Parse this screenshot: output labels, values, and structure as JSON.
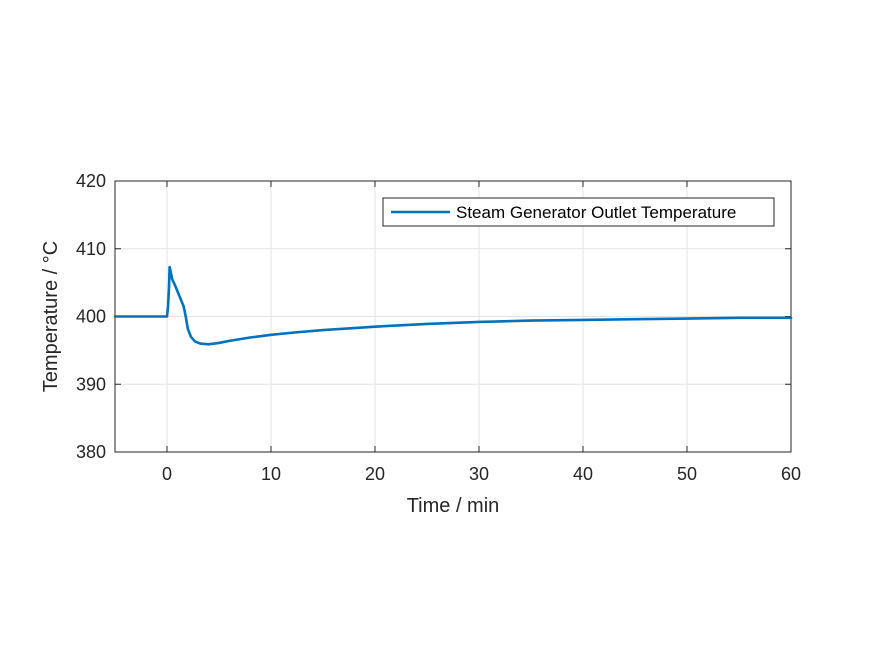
{
  "chart_data": {
    "type": "line",
    "title": "",
    "xlabel": "Time / min",
    "ylabel": "Temperature / °C",
    "xlim": [
      -5,
      60
    ],
    "ylim": [
      380,
      420
    ],
    "xticks": [
      0,
      10,
      20,
      30,
      40,
      50,
      60
    ],
    "yticks": [
      380,
      390,
      400,
      410,
      420
    ],
    "grid": true,
    "legend_position": "top-right",
    "series": [
      {
        "name": "Steam Generator Outlet Temperature",
        "color": "#0072BD",
        "x": [
          -5,
          -2,
          0,
          0.1,
          0.2,
          0.25,
          0.3,
          0.5,
          0.8,
          1.2,
          1.6,
          1.8,
          2.0,
          2.3,
          2.7,
          3.2,
          4.0,
          5,
          6,
          8,
          10,
          12,
          15,
          18,
          20,
          25,
          30,
          35,
          40,
          45,
          50,
          55,
          60
        ],
        "y": [
          400,
          400,
          400,
          401.5,
          404.5,
          407.3,
          407.0,
          405.5,
          404.5,
          403,
          401.5,
          400,
          398.2,
          397.0,
          396.3,
          396.0,
          395.9,
          396.1,
          396.4,
          396.9,
          397.3,
          397.6,
          398.0,
          398.3,
          398.5,
          398.9,
          399.2,
          399.4,
          399.5,
          399.6,
          399.7,
          399.8,
          399.8
        ]
      }
    ]
  }
}
